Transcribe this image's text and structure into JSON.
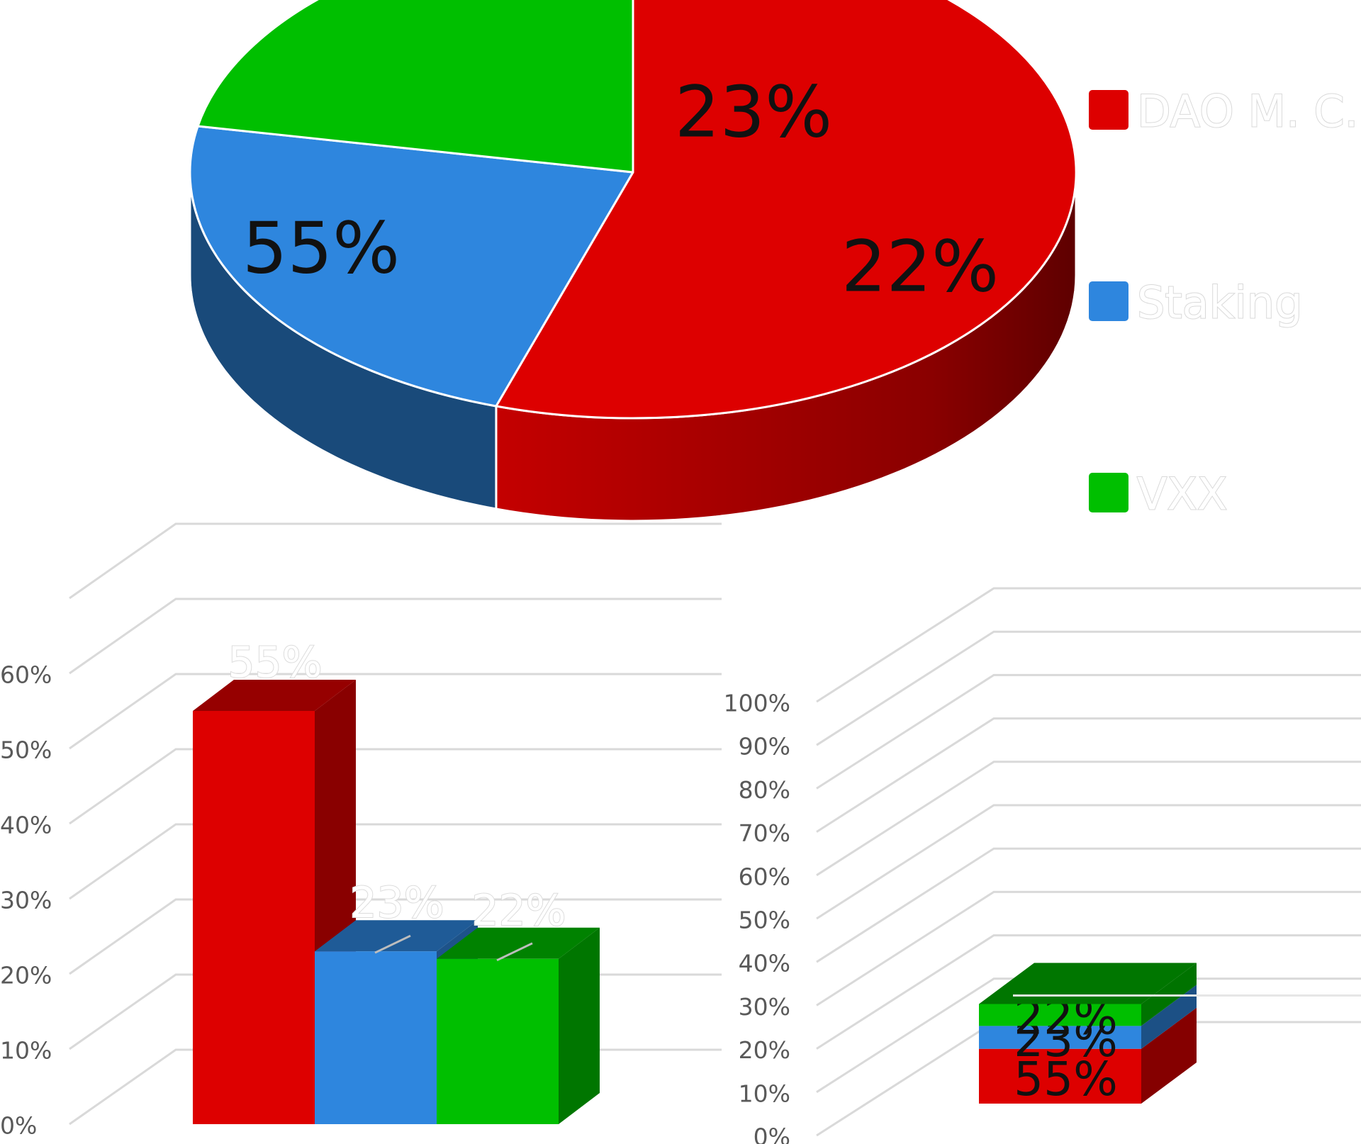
{
  "colors": {
    "dao": "#dd0000",
    "staking": "#2e86de",
    "vxx": "#00bf00"
  },
  "chart_data": [
    {
      "type": "pie",
      "three_d": true,
      "slices": [
        {
          "name": "DAO M. C.",
          "value": 55,
          "label": "55%"
        },
        {
          "name": "Staking",
          "value": 23,
          "label": "23%"
        },
        {
          "name": "VXX",
          "value": 22,
          "label": "22%"
        }
      ],
      "legend": {
        "position": "right",
        "entries": [
          "DAO M. C.",
          "Staking",
          "VXX"
        ]
      }
    },
    {
      "type": "bar",
      "three_d": true,
      "categories": [
        "DAO M. C.",
        "Staking",
        "VXX"
      ],
      "values": [
        55,
        23,
        22
      ],
      "data_labels": [
        "55%",
        "23%",
        "22%"
      ],
      "ylim": [
        0,
        60
      ],
      "yticks": [
        "0%",
        "10%",
        "20%",
        "30%",
        "40%",
        "50%",
        "60%"
      ],
      "grid": true
    },
    {
      "type": "bar",
      "stacked": true,
      "three_d": true,
      "series": [
        {
          "name": "DAO M. C.",
          "value": 55,
          "label": "55%"
        },
        {
          "name": "Staking",
          "value": 23,
          "label": "23%"
        },
        {
          "name": "VXX",
          "value": 22,
          "label": "22%"
        }
      ],
      "ylim": [
        0,
        100
      ],
      "yticks": [
        "0%",
        "10%",
        "20%",
        "30%",
        "40%",
        "50%",
        "60%",
        "70%",
        "80%",
        "90%",
        "100%"
      ],
      "grid": true
    }
  ]
}
